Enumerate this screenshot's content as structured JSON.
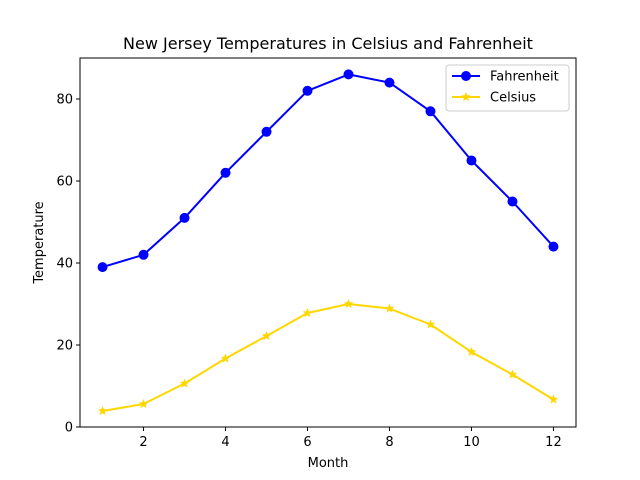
{
  "chart_data": {
    "type": "line",
    "title": "New Jersey Temperatures in Celsius and Fahrenheit",
    "xlabel": "Month",
    "ylabel": "Temperature",
    "xlim": [
      0.45,
      12.55
    ],
    "ylim": [
      0,
      90
    ],
    "xticks": [
      2,
      4,
      6,
      8,
      10,
      12
    ],
    "yticks": [
      0,
      20,
      40,
      60,
      80
    ],
    "grid": false,
    "legend_position": "top-right",
    "x": [
      1,
      2,
      3,
      4,
      5,
      6,
      7,
      8,
      9,
      10,
      11,
      12
    ],
    "series": [
      {
        "name": "Fahrenheit",
        "values": [
          39,
          42,
          51,
          62,
          72,
          82,
          86,
          84,
          77,
          65,
          55,
          44
        ],
        "color": "#0000ff",
        "marker": "circle"
      },
      {
        "name": "Celsius",
        "values": [
          3.9,
          5.6,
          10.6,
          16.7,
          22.2,
          27.8,
          30.0,
          28.9,
          25.0,
          18.3,
          12.8,
          6.7
        ],
        "color": "#ffd700",
        "marker": "star"
      }
    ]
  }
}
